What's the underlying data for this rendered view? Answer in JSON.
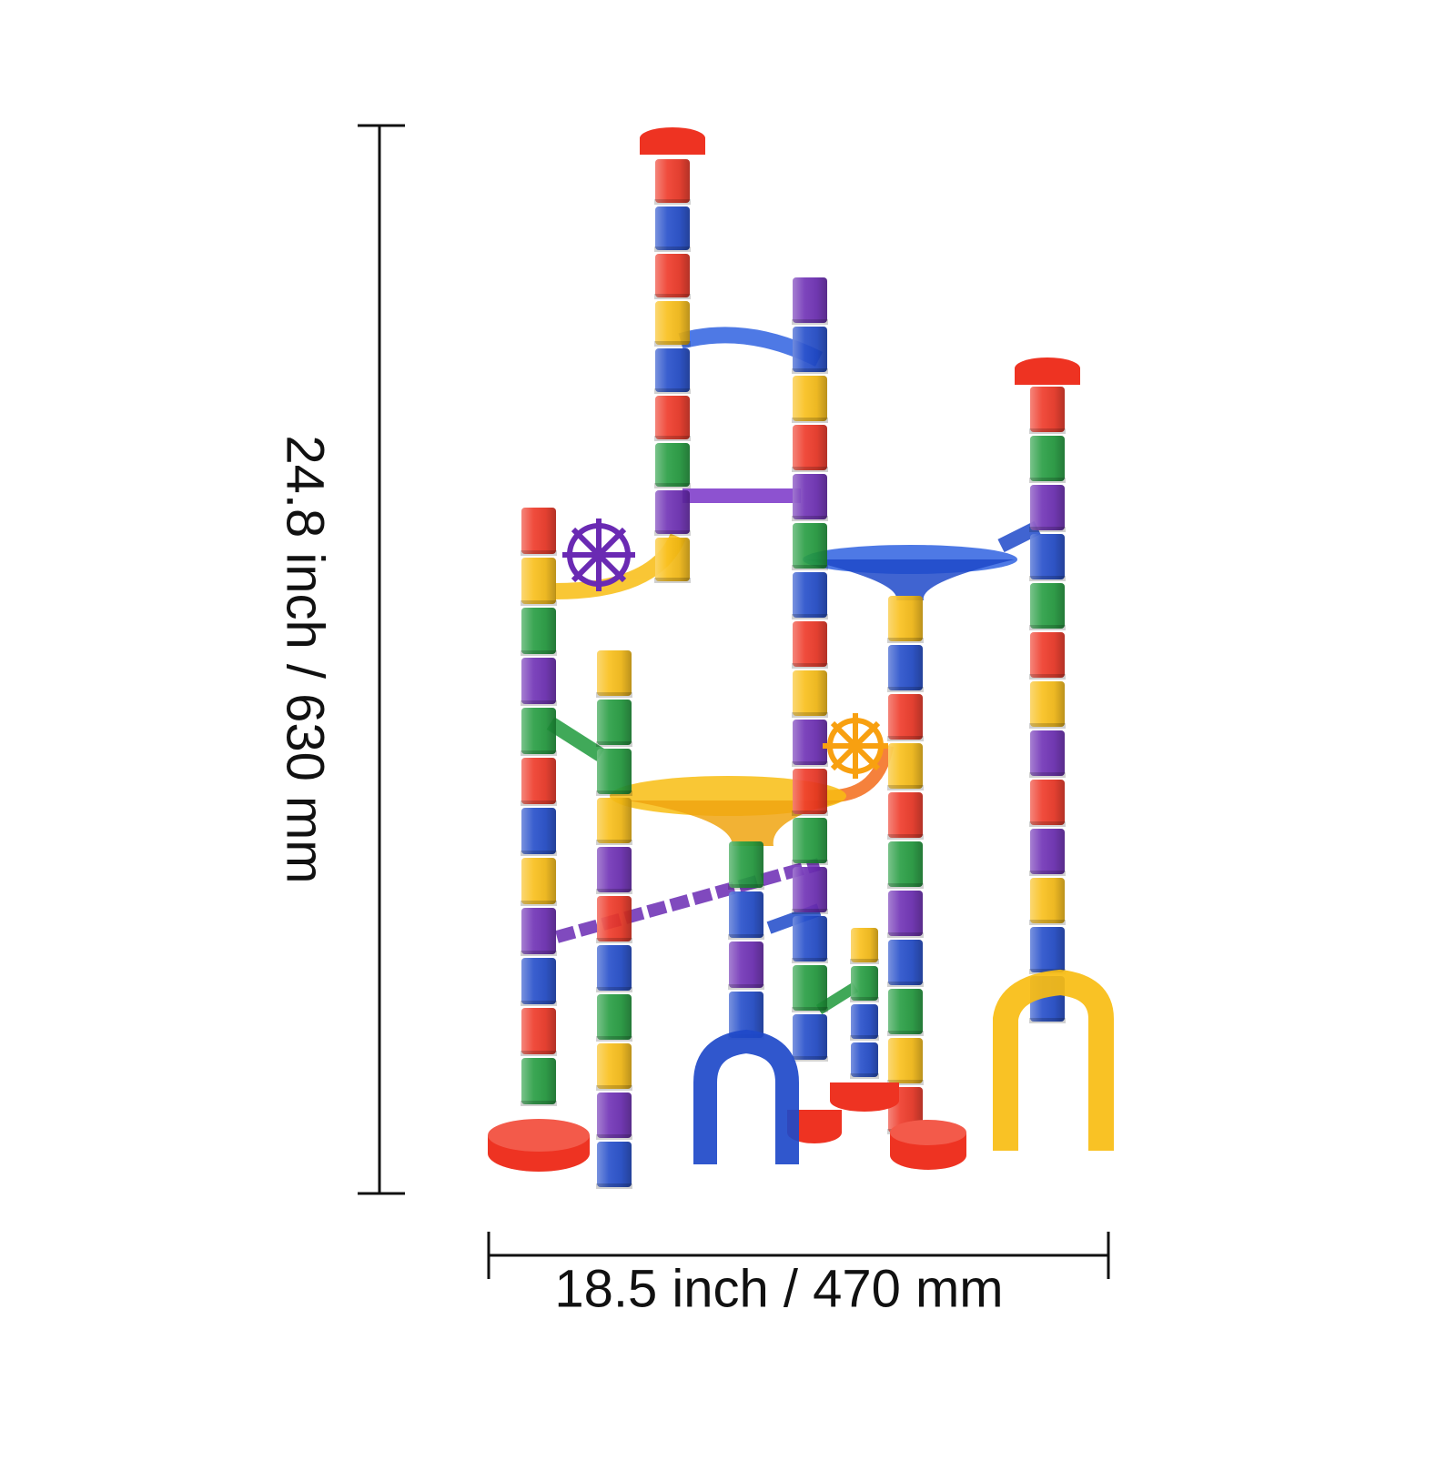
{
  "dimensions": {
    "height_label": "24.8 inch / 630 mm",
    "width_label": "18.5 inch / 470 mm"
  },
  "colors": {
    "red": "#ee3322",
    "orange": "#f36b1a",
    "yellow": "#f8bd12",
    "green": "#1f9a3c",
    "blue": "#1e49c9",
    "purple": "#6a2ab3",
    "dimension_line": "#111111"
  }
}
